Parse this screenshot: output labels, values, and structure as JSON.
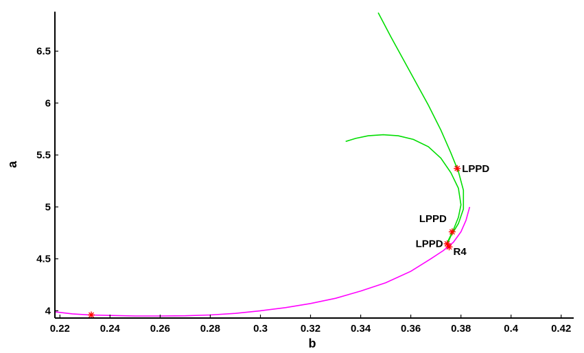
{
  "chart_data": {
    "type": "line",
    "title": "",
    "xlabel": "b",
    "ylabel": "a",
    "xlim": [
      0.218,
      0.425
    ],
    "ylim": [
      3.93,
      6.88
    ],
    "xticks": [
      0.22,
      0.24,
      0.26,
      0.28,
      0.3,
      0.32,
      0.34,
      0.36,
      0.38,
      0.4,
      0.42
    ],
    "xtick_labels": [
      "0.22",
      "0.24",
      "0.26",
      "0.28",
      "0.3",
      "0.32",
      "0.34",
      "0.36",
      "0.38",
      "0.4",
      "0.42"
    ],
    "yticks": [
      4,
      4.5,
      5,
      5.5,
      6,
      6.5
    ],
    "ytick_labels": [
      "4",
      "4.5",
      "5",
      "5.5",
      "6",
      "6.5"
    ],
    "grid": false,
    "legend": "none",
    "series": [
      {
        "color": "#ff00ff",
        "points": [
          [
            0.218,
            3.99
          ],
          [
            0.225,
            3.97
          ],
          [
            0.232,
            3.96
          ],
          [
            0.24,
            3.955
          ],
          [
            0.25,
            3.95
          ],
          [
            0.26,
            3.95
          ],
          [
            0.27,
            3.952
          ],
          [
            0.28,
            3.96
          ],
          [
            0.29,
            3.975
          ],
          [
            0.3,
            4.0
          ],
          [
            0.31,
            4.03
          ],
          [
            0.32,
            4.07
          ],
          [
            0.33,
            4.12
          ],
          [
            0.34,
            4.19
          ],
          [
            0.35,
            4.27
          ],
          [
            0.36,
            4.38
          ],
          [
            0.368,
            4.5
          ],
          [
            0.373,
            4.58
          ],
          [
            0.377,
            4.66
          ],
          [
            0.38,
            4.76
          ],
          [
            0.382,
            4.87
          ],
          [
            0.3835,
            5.0
          ]
        ]
      },
      {
        "color": "#00dd00",
        "points": [
          [
            0.347,
            6.87
          ],
          [
            0.352,
            6.64
          ],
          [
            0.357,
            6.42
          ],
          [
            0.362,
            6.2
          ],
          [
            0.367,
            5.98
          ],
          [
            0.372,
            5.74
          ],
          [
            0.376,
            5.52
          ],
          [
            0.379,
            5.34
          ],
          [
            0.381,
            5.16
          ],
          [
            0.381,
            4.98
          ],
          [
            0.379,
            4.84
          ],
          [
            0.376,
            4.72
          ],
          [
            0.3745,
            4.64
          ]
        ]
      },
      {
        "color": "#00dd00",
        "points": [
          [
            0.334,
            5.63
          ],
          [
            0.338,
            5.66
          ],
          [
            0.343,
            5.685
          ],
          [
            0.349,
            5.695
          ],
          [
            0.355,
            5.685
          ],
          [
            0.361,
            5.65
          ],
          [
            0.367,
            5.58
          ],
          [
            0.372,
            5.47
          ],
          [
            0.376,
            5.33
          ],
          [
            0.379,
            5.18
          ],
          [
            0.38,
            5.02
          ],
          [
            0.379,
            4.9
          ],
          [
            0.377,
            4.78
          ],
          [
            0.375,
            4.68
          ],
          [
            0.3745,
            4.64
          ]
        ]
      }
    ],
    "markers": [
      {
        "x": 0.2325,
        "y": 3.96,
        "label": ""
      },
      {
        "x": 0.3785,
        "y": 5.37,
        "label": "LPPD",
        "position": "right"
      },
      {
        "x": 0.3765,
        "y": 4.76,
        "label": "LPPD",
        "position": "upper-left"
      },
      {
        "x": 0.3745,
        "y": 4.645,
        "label": "LPPD",
        "position": "left"
      },
      {
        "x": 0.3753,
        "y": 4.615,
        "label": "R4",
        "position": "lower-right"
      }
    ]
  }
}
